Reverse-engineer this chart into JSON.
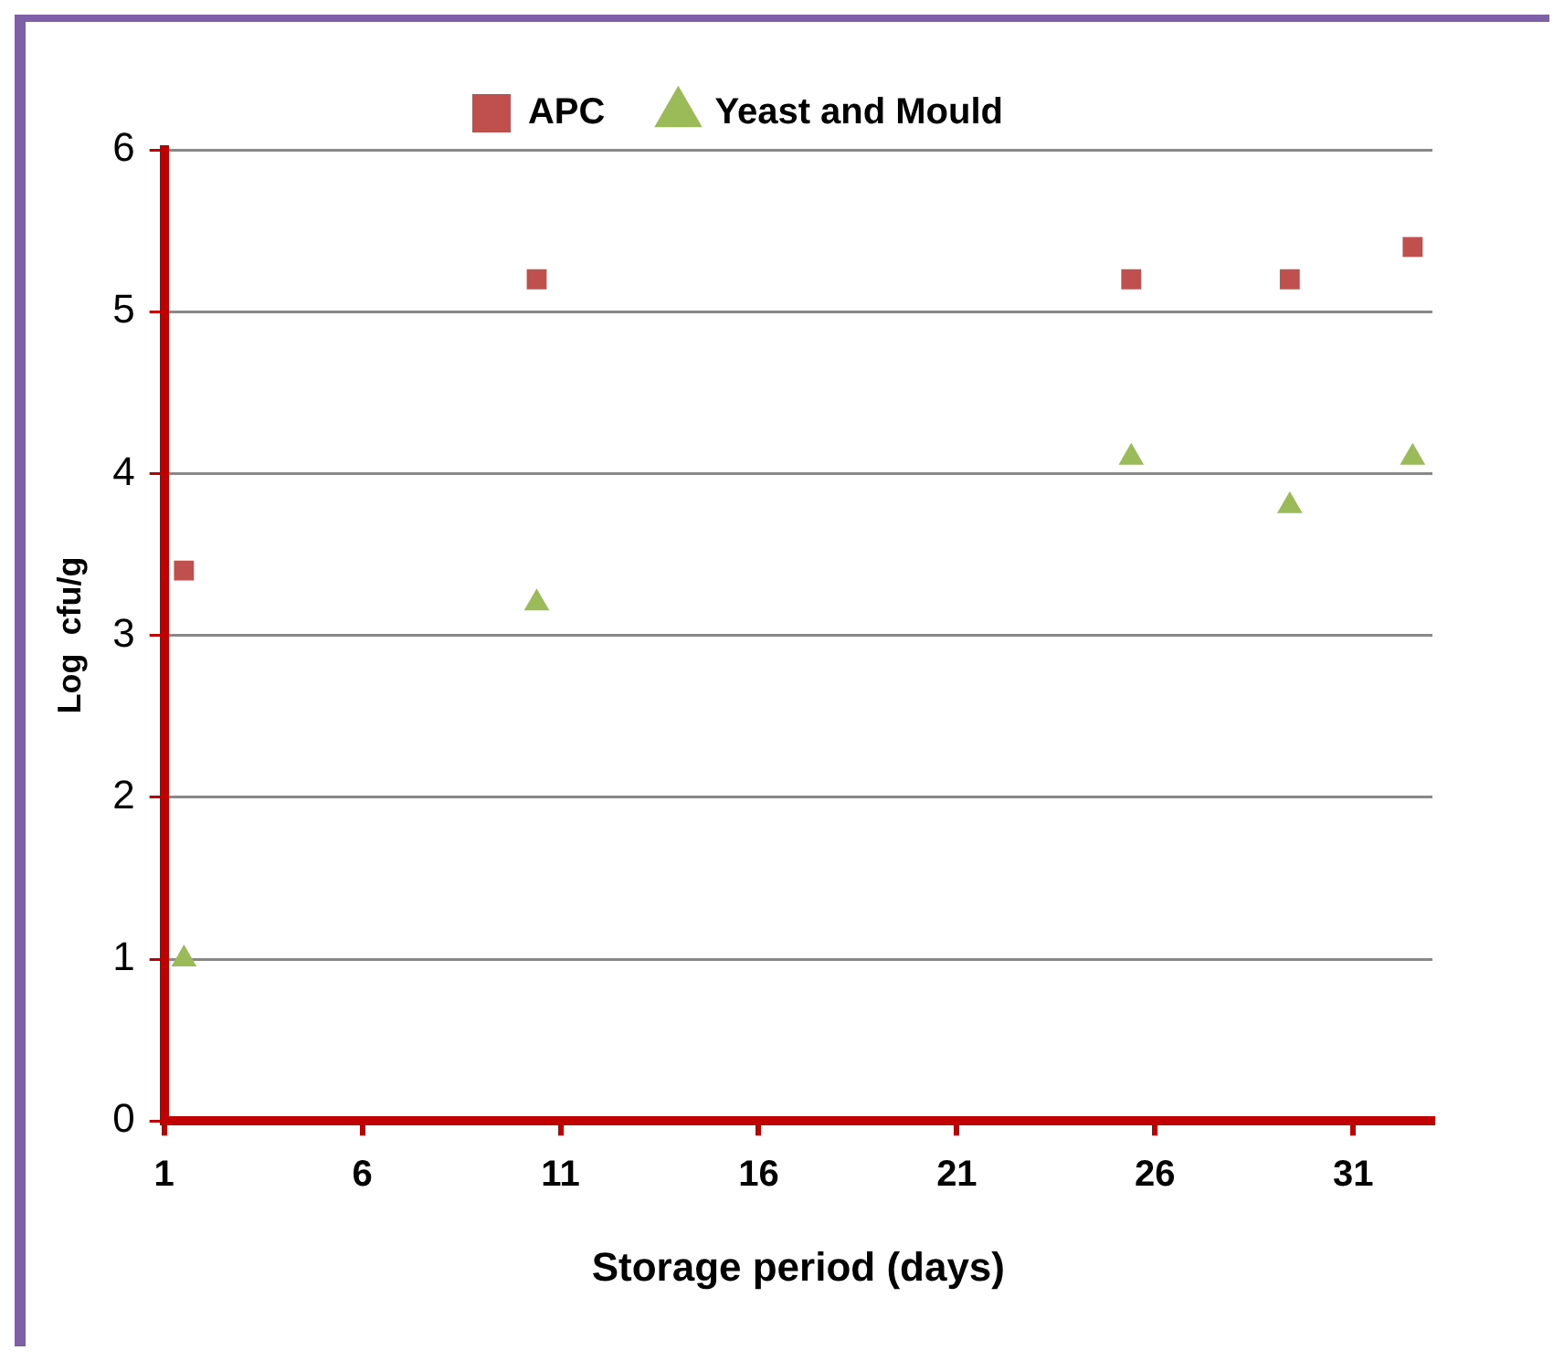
{
  "chart_data": {
    "type": "scatter",
    "xlabel": "Storage period (days)",
    "ylabel": "Log  cfu/g",
    "series": [
      {
        "name": "APC",
        "color": "#c0504d",
        "marker": "square",
        "x": [
          1.5,
          10.4,
          25.4,
          29.4,
          32.5
        ],
        "values": [
          3.4,
          5.2,
          5.2,
          5.2,
          5.4
        ]
      },
      {
        "name": "Yeast and Mould",
        "color": "#9bbb59",
        "marker": "triangle",
        "x": [
          1.5,
          10.4,
          25.4,
          29.4,
          32.5
        ],
        "values": [
          1.0,
          3.2,
          4.1,
          3.8,
          4.1
        ]
      }
    ],
    "xlim": [
      1,
      33
    ],
    "xticks": [
      1,
      6,
      11,
      16,
      21,
      26,
      31
    ],
    "ylim": [
      0,
      6
    ],
    "yticks": [
      0,
      1,
      2,
      3,
      4,
      5,
      6
    ],
    "grid": "y",
    "legend": "top"
  }
}
